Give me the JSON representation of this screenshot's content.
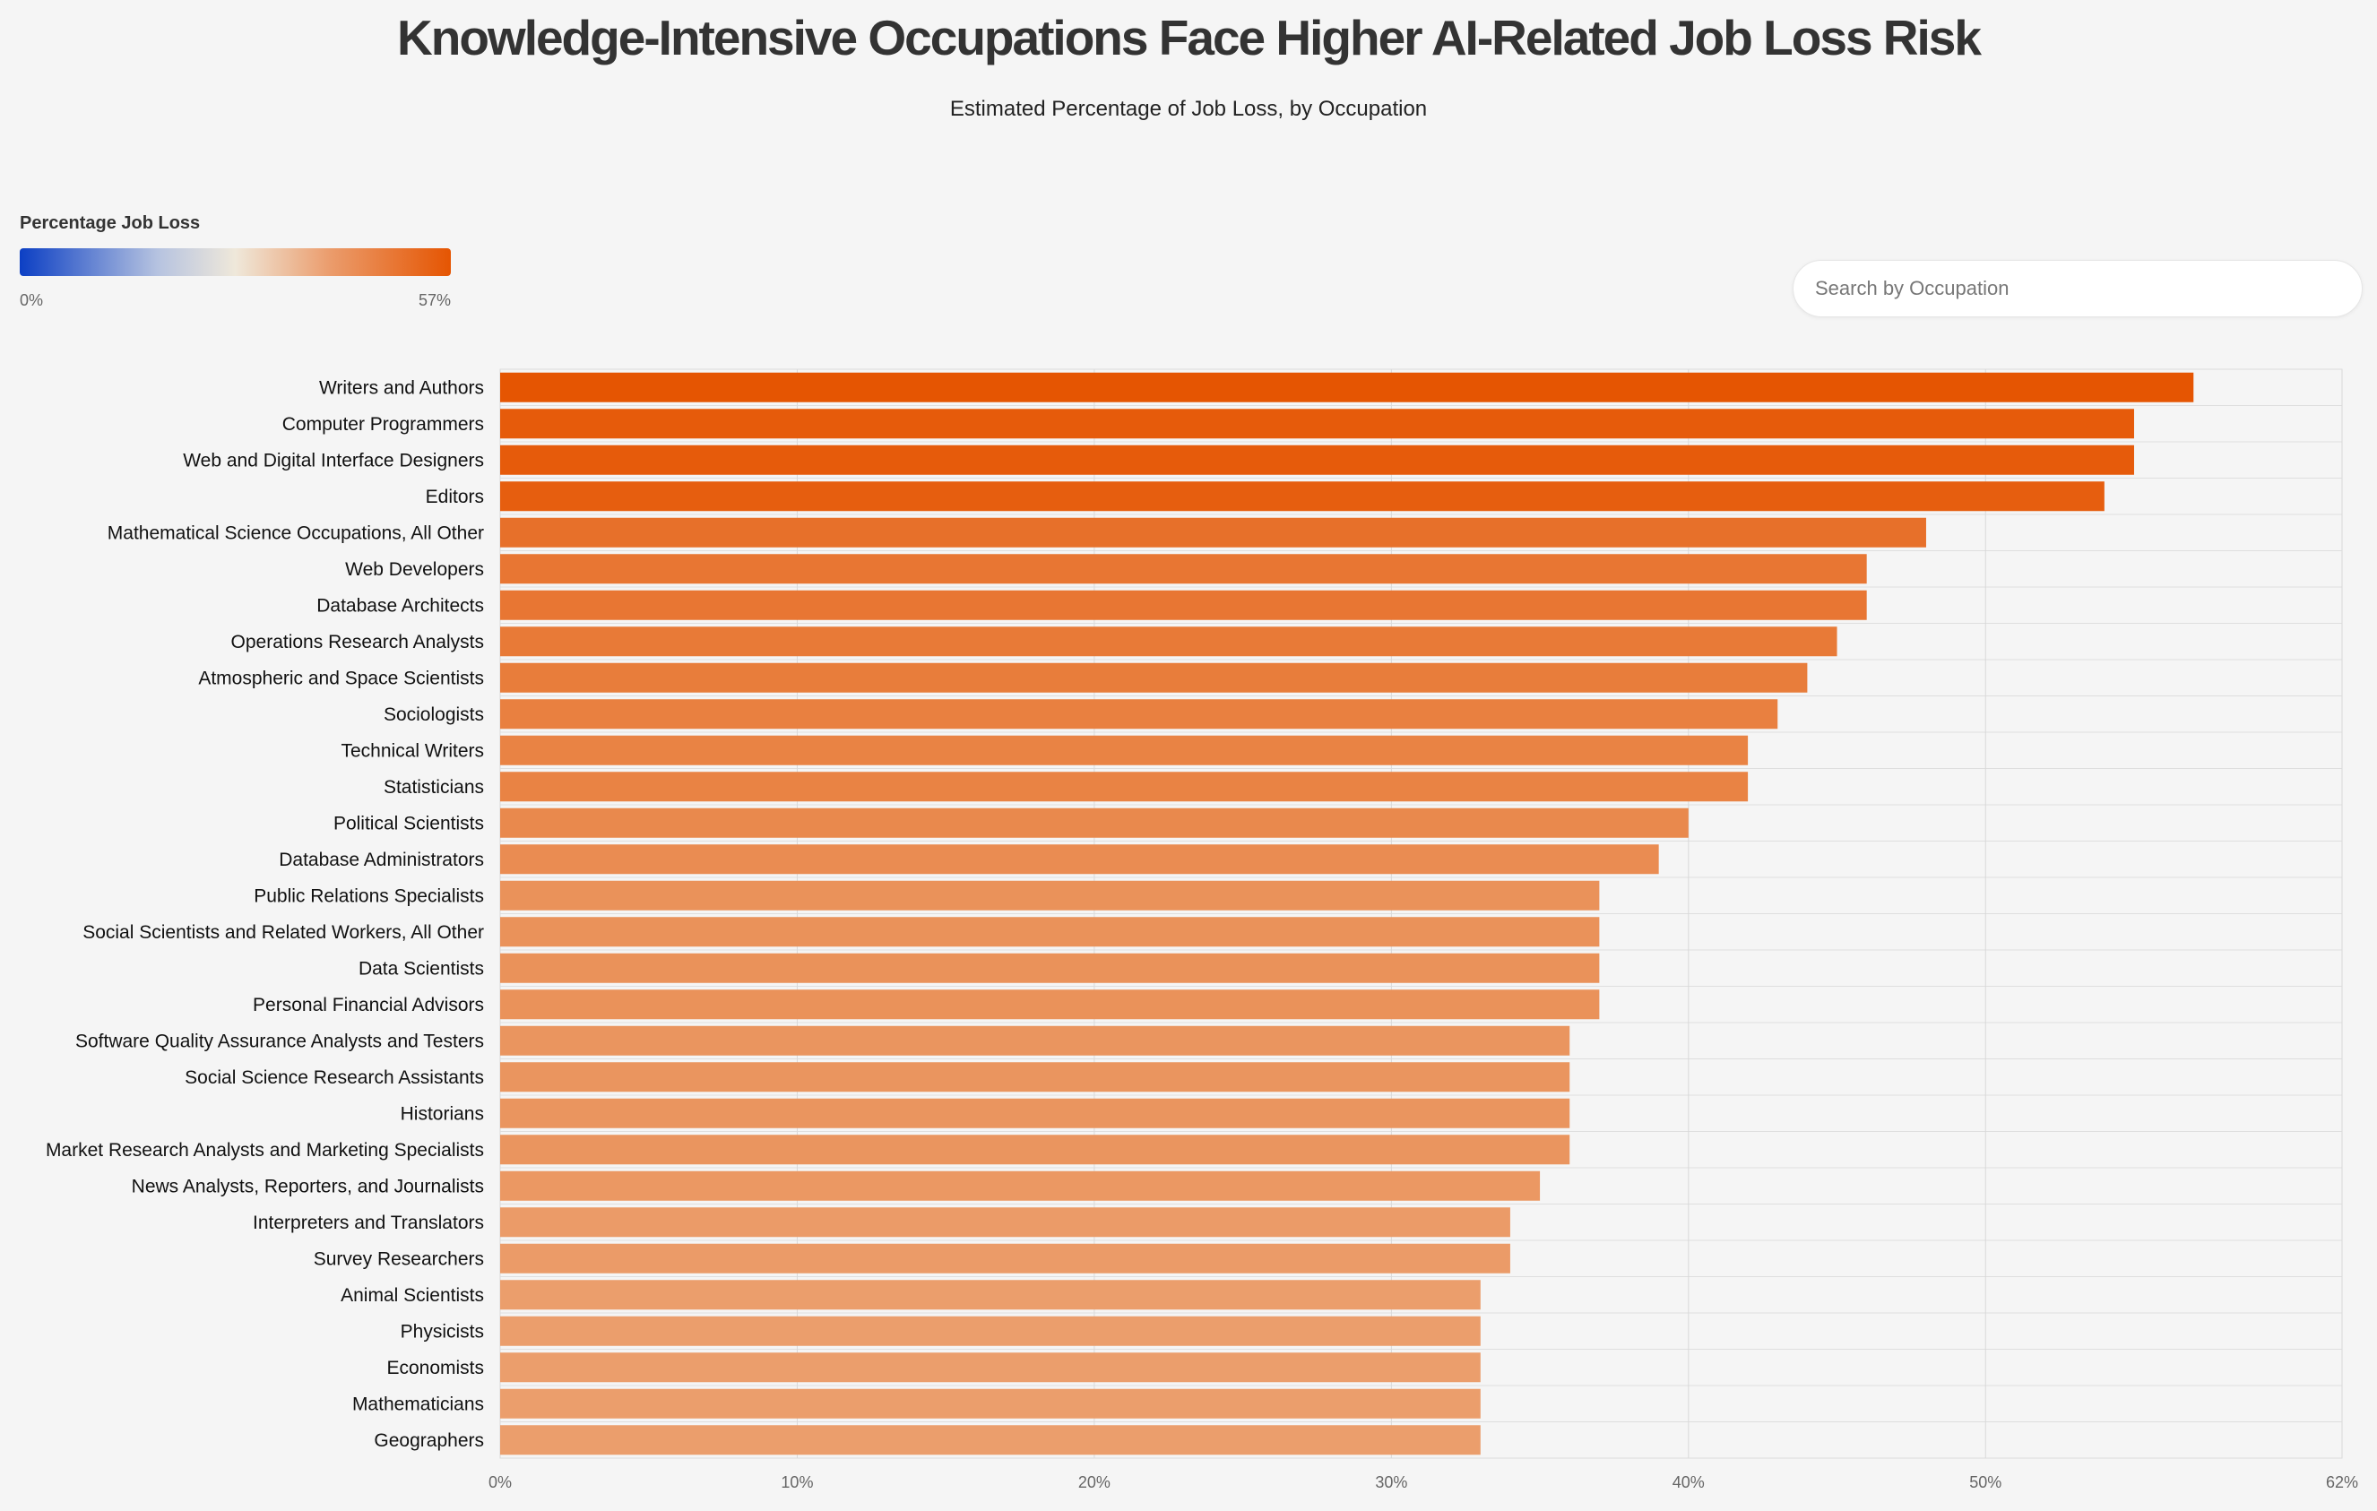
{
  "header": {
    "title": "Knowledge-Intensive Occupations Face Higher AI-Related Job Loss Risk",
    "subtitle": "Estimated Percentage of Job Loss, by Occupation"
  },
  "legend": {
    "title": "Percentage Job Loss",
    "min_label": "0%",
    "max_label": "57%",
    "colors": [
      "#0c3fc4",
      "#b6c3e0",
      "#efe8da",
      "#eb9c6c",
      "#e55502"
    ]
  },
  "search": {
    "placeholder": "Search by Occupation",
    "value": ""
  },
  "chart_data": {
    "type": "bar",
    "orientation": "horizontal",
    "categories": [
      "Writers and Authors",
      "Computer Programmers",
      "Web and Digital Interface Designers",
      "Editors",
      "Mathematical Science Occupations, All Other",
      "Web Developers",
      "Database Architects",
      "Operations Research Analysts",
      "Atmospheric and Space Scientists",
      "Sociologists",
      "Technical Writers",
      "Statisticians",
      "Political Scientists",
      "Database Administrators",
      "Public Relations Specialists",
      "Social Scientists and Related Workers, All Other",
      "Data Scientists",
      "Personal Financial Advisors",
      "Software Quality Assurance Analysts and Testers",
      "Social Science Research Assistants",
      "Historians",
      "Market Research Analysts and Marketing Specialists",
      "News Analysts, Reporters, and Journalists",
      "Interpreters and Translators",
      "Survey Researchers",
      "Animal Scientists",
      "Physicists",
      "Economists",
      "Mathematicians",
      "Geographers"
    ],
    "values": [
      57,
      55,
      55,
      54,
      48,
      46,
      46,
      45,
      44,
      43,
      42,
      42,
      40,
      39,
      37,
      37,
      37,
      37,
      36,
      36,
      36,
      36,
      35,
      34,
      34,
      33,
      33,
      33,
      33,
      33
    ],
    "xlim": [
      0,
      62
    ],
    "xticks": [
      0,
      10,
      20,
      30,
      40,
      50,
      62
    ],
    "xtick_labels": [
      "0%",
      "10%",
      "20%",
      "30%",
      "40%",
      "50%",
      "62%"
    ],
    "color_scale_max": 57,
    "grid": true,
    "legend_position": "top-left"
  }
}
